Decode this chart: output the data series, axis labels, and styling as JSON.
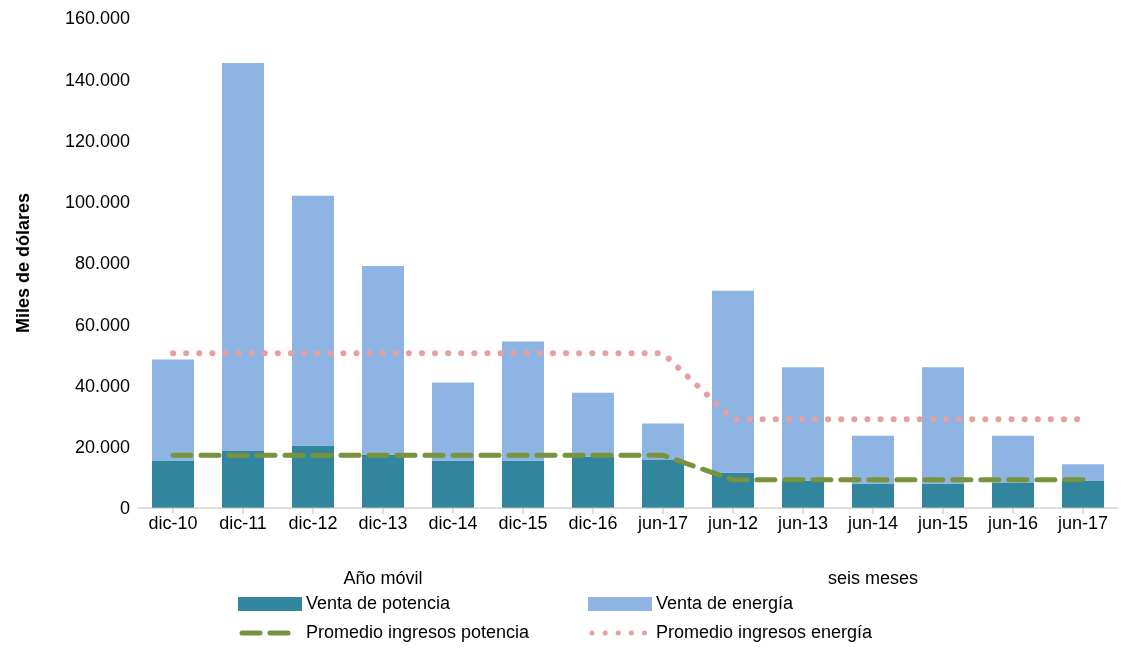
{
  "chart_data": {
    "type": "bar",
    "ylabel": "Miles de dólares",
    "stacked": true,
    "legend": "bottom",
    "categories": [
      "dic-10",
      "dic-11",
      "dic-12",
      "dic-13",
      "dic-14",
      "dic-15",
      "dic-16",
      "jun-17",
      "jun-12",
      "jun-13",
      "jun-14",
      "jun-15",
      "jun-16",
      "jun-17"
    ],
    "series": [
      {
        "name": "Venta de potencia",
        "color": "#31859c",
        "values": [
          15500,
          18600,
          20400,
          17500,
          15400,
          15400,
          16800,
          15700,
          11500,
          9000,
          8000,
          8000,
          8200,
          9000
        ]
      },
      {
        "name": "Venta de energía",
        "color": "#8db4e2",
        "values": [
          33000,
          126700,
          81600,
          61500,
          25600,
          39000,
          20800,
          11900,
          59400,
          37000,
          15600,
          38000,
          15400,
          5300
        ]
      },
      {
        "name": "Promedio ingresos potencia",
        "type": "line",
        "line_style": "dashed",
        "color": "#77933c",
        "values": [
          17200,
          17200,
          17200,
          17200,
          17200,
          17200,
          17200,
          17200,
          9200,
          9200,
          9200,
          9200,
          9200,
          9200
        ]
      },
      {
        "name": "Promedio ingresos energía",
        "type": "line",
        "line_style": "dotted",
        "color": "#e6a0a0",
        "values": [
          50500,
          50500,
          50500,
          50500,
          50500,
          50500,
          50500,
          50500,
          29000,
          29000,
          29000,
          29000,
          29000,
          29000
        ]
      }
    ],
    "ylim": [
      0,
      160000
    ],
    "yticks": [
      {
        "value": 0,
        "label": "0"
      },
      {
        "value": 20000,
        "label": "20.000"
      },
      {
        "value": 40000,
        "label": "40.000"
      },
      {
        "value": 60000,
        "label": "60.000"
      },
      {
        "value": 80000,
        "label": "80.000"
      },
      {
        "value": 100000,
        "label": "100.000"
      },
      {
        "value": 120000,
        "label": "120.000"
      },
      {
        "value": 140000,
        "label": "140.000"
      },
      {
        "value": 160000,
        "label": "160.000"
      }
    ],
    "annotations": [
      "Año móvil",
      "seis meses"
    ]
  }
}
